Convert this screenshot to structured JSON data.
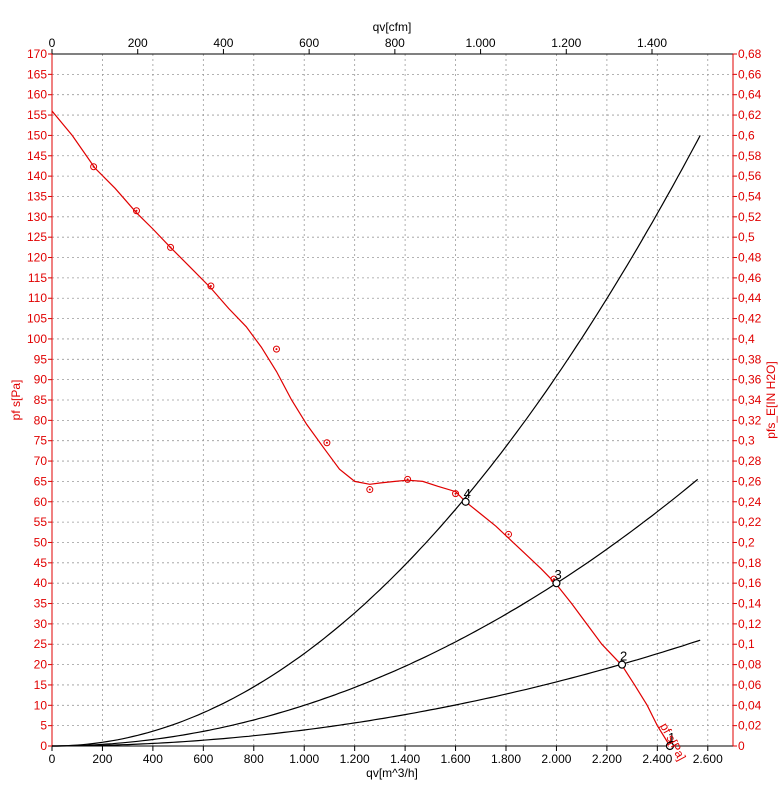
{
  "chart_data": {
    "type": "line",
    "title": "",
    "x_bottom": {
      "label": "qv[m^3/h]",
      "range": [
        0,
        2700
      ],
      "ticks": [
        "0",
        "200",
        "400",
        "600",
        "800",
        "1.000",
        "1.200",
        "1.400",
        "1.600",
        "1.800",
        "2.000",
        "2.200",
        "2.400",
        "2.600"
      ],
      "tick_values": [
        0,
        200,
        400,
        600,
        800,
        1000,
        1200,
        1400,
        1600,
        1800,
        2000,
        2200,
        2400,
        2600
      ]
    },
    "x_top": {
      "label": "qv[cfm]",
      "range": [
        0,
        1589
      ],
      "ticks": [
        "0",
        "200",
        "400",
        "600",
        "800",
        "1.000",
        "1.200",
        "1.400"
      ],
      "tick_values": [
        0,
        200,
        400,
        600,
        800,
        1000,
        1200,
        1400
      ]
    },
    "y_left": {
      "label": "pf s[Pa]",
      "range": [
        0,
        170
      ],
      "ticks": [
        "0",
        "5",
        "10",
        "15",
        "20",
        "25",
        "30",
        "35",
        "40",
        "45",
        "50",
        "55",
        "60",
        "65",
        "70",
        "75",
        "80",
        "85",
        "90",
        "95",
        "100",
        "105",
        "110",
        "115",
        "120",
        "125",
        "130",
        "135",
        "140",
        "145",
        "150",
        "155",
        "160",
        "165",
        "170"
      ],
      "tick_values": [
        0,
        5,
        10,
        15,
        20,
        25,
        30,
        35,
        40,
        45,
        50,
        55,
        60,
        65,
        70,
        75,
        80,
        85,
        90,
        95,
        100,
        105,
        110,
        115,
        120,
        125,
        130,
        135,
        140,
        145,
        150,
        155,
        160,
        165,
        170
      ]
    },
    "y_right": {
      "label": "pfs_E[IN H2O]",
      "range": [
        0,
        0.68
      ],
      "ticks": [
        "0",
        "0,02",
        "0,04",
        "0,06",
        "0,08",
        "0,1",
        "0,12",
        "0,14",
        "0,16",
        "0,18",
        "0,2",
        "0,22",
        "0,24",
        "0,26",
        "0,28",
        "0,3",
        "0,32",
        "0,34",
        "0,36",
        "0,38",
        "0,4",
        "0,42",
        "0,44",
        "0,46",
        "0,48",
        "0,5",
        "0,52",
        "0,54",
        "0,56",
        "0,58",
        "0,6",
        "0,62",
        "0,64",
        "0,66",
        "0,68"
      ],
      "tick_values": [
        0,
        0.02,
        0.04,
        0.06,
        0.08,
        0.1,
        0.12,
        0.14,
        0.16,
        0.18,
        0.2,
        0.22,
        0.24,
        0.26,
        0.28,
        0.3,
        0.32,
        0.34,
        0.36,
        0.38,
        0.4,
        0.42,
        0.44,
        0.46,
        0.48,
        0.5,
        0.52,
        0.54,
        0.56,
        0.58,
        0.6,
        0.62,
        0.64,
        0.66,
        0.68
      ]
    },
    "grid": true,
    "series": [
      {
        "name": "pf s[Pa]",
        "color": "#e00000",
        "curve": [
          [
            0,
            156
          ],
          [
            80,
            150
          ],
          [
            170,
            142
          ],
          [
            250,
            137
          ],
          [
            335,
            131
          ],
          [
            400,
            127
          ],
          [
            470,
            122.5
          ],
          [
            550,
            117.5
          ],
          [
            630,
            112.5
          ],
          [
            700,
            107.5
          ],
          [
            770,
            103
          ],
          [
            830,
            98
          ],
          [
            890,
            92
          ],
          [
            950,
            85
          ],
          [
            1010,
            79
          ],
          [
            1080,
            73
          ],
          [
            1140,
            68
          ],
          [
            1200,
            65
          ],
          [
            1260,
            64.3
          ],
          [
            1300,
            64.6
          ],
          [
            1360,
            65
          ],
          [
            1410,
            65.3
          ],
          [
            1470,
            65
          ],
          [
            1530,
            63.8
          ],
          [
            1600,
            62.5
          ],
          [
            1640,
            60
          ],
          [
            1700,
            57
          ],
          [
            1760,
            54
          ],
          [
            1820,
            50.5
          ],
          [
            1880,
            47
          ],
          [
            1940,
            43.5
          ],
          [
            2000,
            39.7
          ],
          [
            2060,
            35
          ],
          [
            2120,
            30
          ],
          [
            2180,
            25
          ],
          [
            2260,
            19.8
          ],
          [
            2310,
            15
          ],
          [
            2360,
            10
          ],
          [
            2400,
            5
          ],
          [
            2450,
            0
          ]
        ],
        "measured": [
          [
            165,
            142.3
          ],
          [
            335,
            131.5
          ],
          [
            470,
            122.5
          ],
          [
            630,
            113
          ],
          [
            890,
            97.5
          ],
          [
            1090,
            74.5
          ],
          [
            1260,
            63
          ],
          [
            1410,
            65.5
          ],
          [
            1600,
            62
          ],
          [
            1810,
            52
          ],
          [
            1990,
            41
          ]
        ]
      },
      {
        "name": "",
        "color": "#000000",
        "curve": [
          [
            0,
            0
          ],
          [
            2570,
            150
          ]
        ]
      },
      {
        "name": "",
        "color": "#000000",
        "curve": [
          [
            0,
            0
          ],
          [
            2560,
            65.5
          ]
        ]
      },
      {
        "name": "",
        "color": "#000000",
        "curve": [
          [
            0,
            0
          ],
          [
            2570,
            26
          ]
        ]
      }
    ],
    "operating_points": [
      {
        "label": "1",
        "x": 2450,
        "y": 0
      },
      {
        "label": "2",
        "x": 2260,
        "y": 20
      },
      {
        "label": "3",
        "x": 2000,
        "y": 40
      },
      {
        "label": "4",
        "x": 1640,
        "y": 60
      }
    ],
    "curve_label": "pf s[Pa]"
  }
}
